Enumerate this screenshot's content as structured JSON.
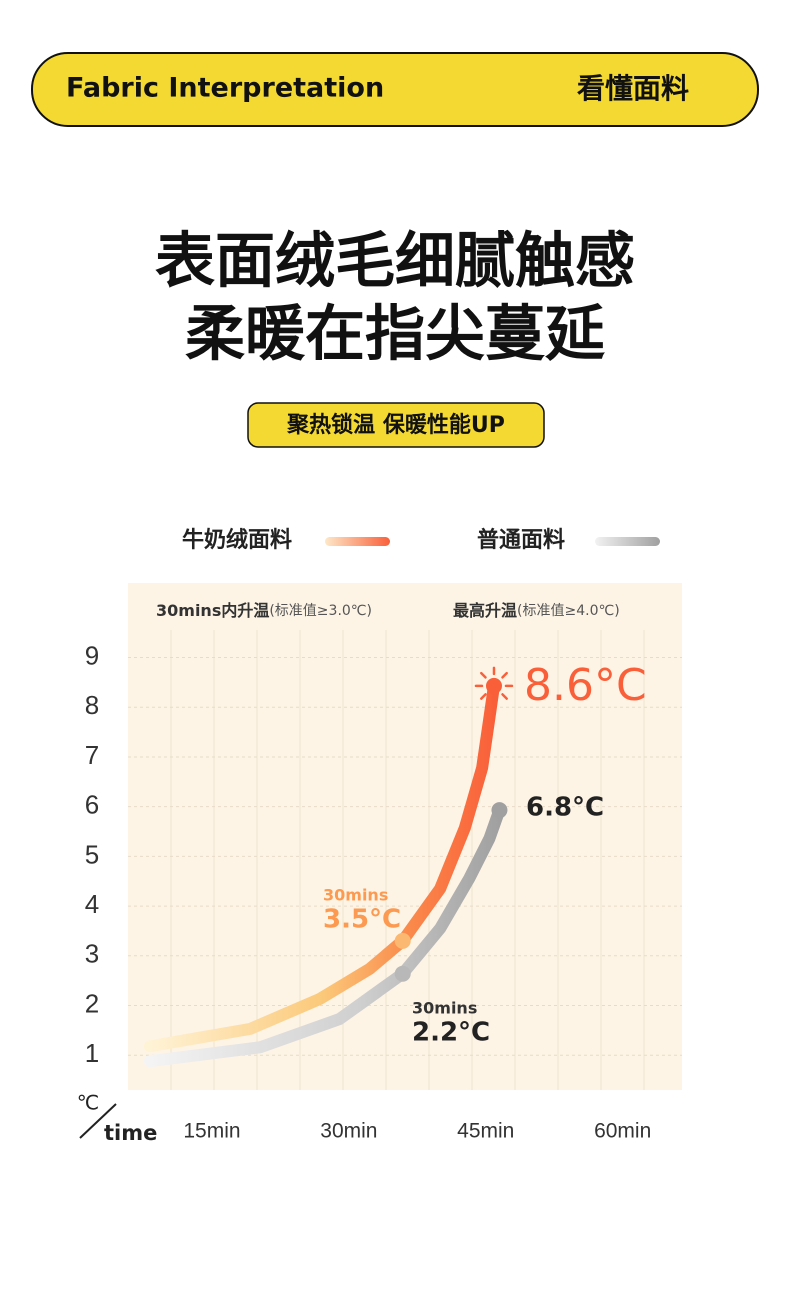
{
  "header": {
    "title_en": "Fabric Interpretation",
    "title_cn": "看懂面料"
  },
  "headline": [
    "表面绒毛细腻触感",
    "柔暖在指尖蔓延"
  ],
  "badge": "聚热锁温 保暖性能UP",
  "chart_data": {
    "type": "line",
    "subtitles": [
      {
        "main": "30mins内升温",
        "note": "(标准值≥3.0℃)"
      },
      {
        "main": "最高升温",
        "note": "(标准值≥4.0℃)"
      }
    ],
    "y_unit": "℃",
    "x_label": "time",
    "xlim": [
      5.8,
      66.5
    ],
    "ylim": [
      0.3,
      10.5
    ],
    "xticks": [
      {
        "value": 15,
        "label": "15min"
      },
      {
        "value": 30,
        "label": "30min"
      },
      {
        "value": 45,
        "label": "45min"
      },
      {
        "value": 60,
        "label": "60min"
      }
    ],
    "yticks": [
      1,
      2,
      3,
      4,
      5,
      6,
      7,
      8,
      9
    ],
    "grid": true,
    "series": [
      {
        "name": "牛奶绒面料",
        "color": "#f96a3e",
        "x": [
          8.2,
          19.2,
          26.8,
          32.3,
          35.9,
          40.0,
          42.7,
          44.6,
          45.4,
          45.9
        ],
        "values": [
          1.18,
          1.53,
          2.13,
          2.74,
          3.3,
          4.35,
          5.57,
          6.78,
          7.79,
          8.43
        ]
      },
      {
        "name": "普通面料",
        "color": "#a9a9a9",
        "x": [
          8.2,
          20.3,
          29.0,
          35.9,
          40.0,
          43.2,
          45.4,
          46.5
        ],
        "values": [
          0.88,
          1.16,
          1.73,
          2.64,
          3.55,
          4.56,
          5.36,
          5.93
        ]
      }
    ],
    "annotations": [
      "8.6°C",
      "6.8°C",
      "30mins",
      "3.5°C",
      "30mins",
      "2.2°C"
    ]
  }
}
